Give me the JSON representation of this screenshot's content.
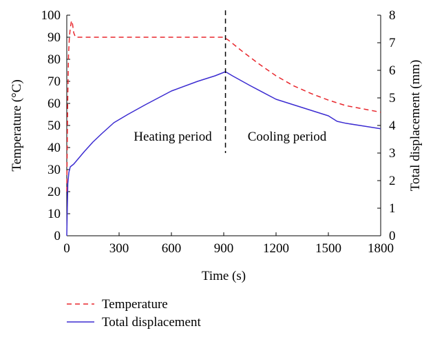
{
  "chart_data": {
    "type": "line",
    "xlabel": "Time (s)",
    "ylabel_left": "Temperature (°C)",
    "ylabel_right": "Total displacement (mm)",
    "xlim": [
      0,
      1800
    ],
    "ylim_left": [
      0,
      100
    ],
    "ylim_right": [
      0,
      8
    ],
    "xticks": [
      0,
      300,
      600,
      900,
      1200,
      1500,
      1800
    ],
    "yticks_left": [
      0,
      10,
      20,
      30,
      40,
      50,
      60,
      70,
      80,
      90,
      100
    ],
    "yticks_right": [
      0,
      1,
      2,
      3,
      4,
      5,
      6,
      7,
      8
    ],
    "grid": false,
    "legend_position": "bottom-left",
    "series": [
      {
        "name": "Temperature",
        "axis": "left",
        "color": "#e8262c",
        "style": "dashed",
        "points": [
          [
            0,
            20
          ],
          [
            5,
            60
          ],
          [
            10,
            82
          ],
          [
            15,
            90
          ],
          [
            20,
            94
          ],
          [
            27,
            97.5
          ],
          [
            33,
            96
          ],
          [
            40,
            92
          ],
          [
            50,
            90
          ],
          [
            100,
            90
          ],
          [
            300,
            90
          ],
          [
            600,
            90
          ],
          [
            900,
            90
          ],
          [
            930,
            88.5
          ],
          [
            1000,
            84
          ],
          [
            1100,
            78
          ],
          [
            1200,
            72.5
          ],
          [
            1300,
            68
          ],
          [
            1400,
            64.5
          ],
          [
            1500,
            61.5
          ],
          [
            1600,
            59
          ],
          [
            1700,
            57.5
          ],
          [
            1800,
            56
          ]
        ]
      },
      {
        "name": "Total displacement",
        "axis": "right",
        "color": "#3b2bd1",
        "style": "solid",
        "points": [
          [
            0,
            0
          ],
          [
            3,
            1.0
          ],
          [
            6,
            1.9
          ],
          [
            12,
            2.3
          ],
          [
            20,
            2.5
          ],
          [
            40,
            2.6
          ],
          [
            60,
            2.75
          ],
          [
            100,
            3.05
          ],
          [
            150,
            3.4
          ],
          [
            200,
            3.7
          ],
          [
            270,
            4.1
          ],
          [
            350,
            4.4
          ],
          [
            450,
            4.75
          ],
          [
            600,
            5.25
          ],
          [
            750,
            5.6
          ],
          [
            850,
            5.8
          ],
          [
            910,
            5.95
          ],
          [
            950,
            5.8
          ],
          [
            1050,
            5.45
          ],
          [
            1200,
            4.95
          ],
          [
            1300,
            4.75
          ],
          [
            1400,
            4.55
          ],
          [
            1500,
            4.35
          ],
          [
            1550,
            4.15
          ],
          [
            1600,
            4.08
          ],
          [
            1700,
            3.98
          ],
          [
            1800,
            3.88
          ]
        ]
      }
    ],
    "annotations": {
      "divider_x": 910,
      "heating_label": "Heating period",
      "cooling_label": "Cooling period"
    }
  }
}
